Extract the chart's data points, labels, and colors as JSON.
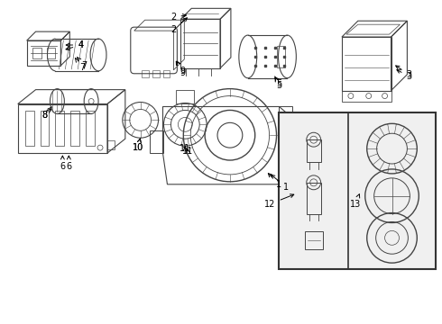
{
  "bg_color": "#ffffff",
  "line_color": "#444444",
  "text_color": "#000000",
  "fig_width": 4.9,
  "fig_height": 3.6,
  "dpi": 100
}
